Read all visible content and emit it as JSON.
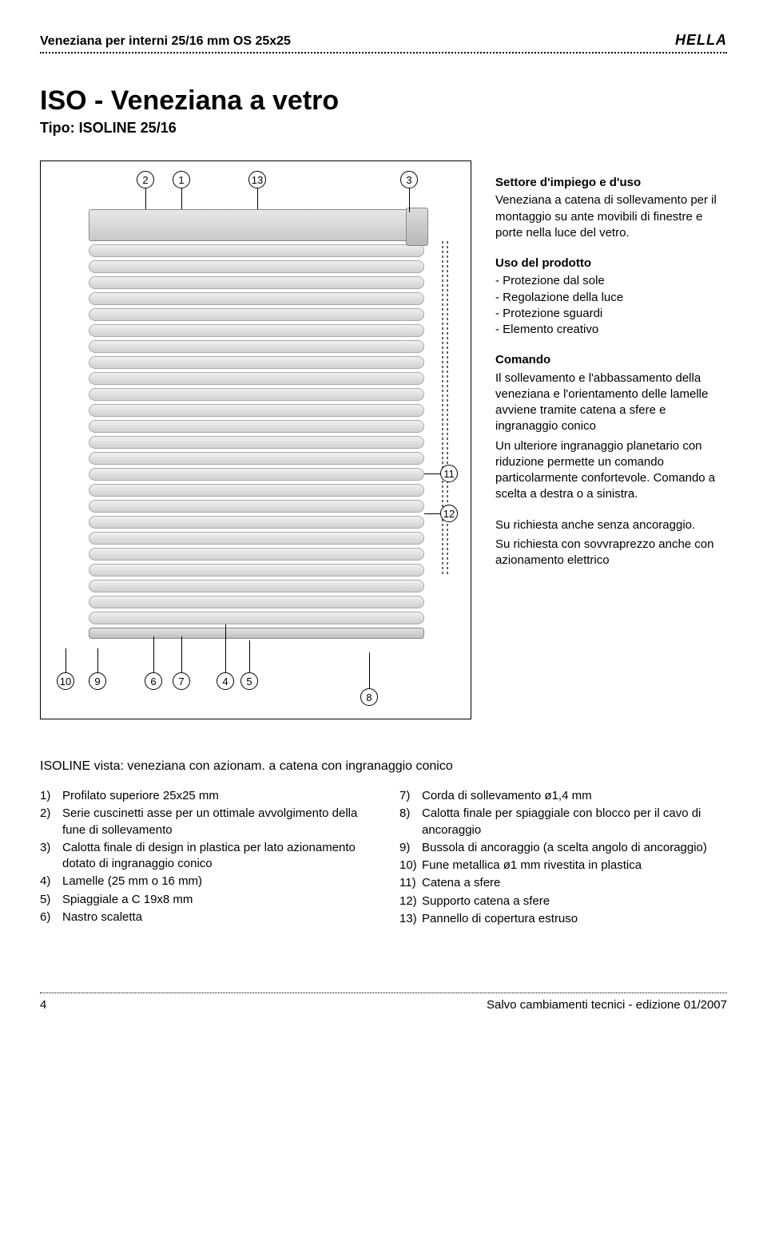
{
  "header": {
    "title": "Veneziana per interni 25/16 mm OS 25x25",
    "brand": "HELLA"
  },
  "title": "ISO - Veneziana a vetro",
  "subtitle": "Tipo: ISOLINE 25/16",
  "sections": {
    "settore_title": "Settore d'impiego e d'uso",
    "settore_body": "Veneziana a catena di sollevamento per il montaggio su ante movibili di finestre e porte nella luce del vetro.",
    "uso_title": "Uso del prodotto",
    "uso_items": [
      "Protezione dal sole",
      "Regolazione della luce",
      "Protezione sguardi",
      "Elemento creativo"
    ],
    "comando_title": "Comando",
    "comando_body1": "Il sollevamento e l'abbassamento della veneziana e l'orientamento delle lamelle avviene tramite catena a sfere e ingranaggio conico",
    "comando_body2": "Un ulteriore ingranaggio planetario con riduzione permette un comando particolarmente confortevole. Comando a scelta a destra o a sinistra.",
    "extra1": "Su richiesta anche senza ancoraggio.",
    "extra2": "Su richiesta con sovvraprezzo anche con azionamento elettrico"
  },
  "diagram": {
    "callouts_top": [
      "2",
      "1",
      "13",
      "3"
    ],
    "callouts_right": [
      "11",
      "12"
    ],
    "callouts_bottom_left": [
      "10",
      "9",
      "6",
      "7",
      "4",
      "5"
    ],
    "callout_bottom_center": "8",
    "slat_count": 24,
    "colors": {
      "frame": "#000000",
      "slat_light": "#f0f0f0",
      "slat_dark": "#d0d0d0"
    }
  },
  "caption": "ISOLINE vista: veneziana con azionam. a catena con ingranaggio conico",
  "parts_left": [
    {
      "n": "1)",
      "t": "Profilato superiore 25x25 mm"
    },
    {
      "n": "2)",
      "t": "Serie cuscinetti asse per un ottimale avvolgimento della fune di sollevamento"
    },
    {
      "n": "3)",
      "t": "Calotta finale di design in plastica per lato azionamento dotato di ingranaggio conico"
    },
    {
      "n": "4)",
      "t": "Lamelle (25 mm  o 16 mm)"
    },
    {
      "n": "5)",
      "t": "Spiaggiale a C 19x8 mm"
    },
    {
      "n": "6)",
      "t": "Nastro scaletta"
    }
  ],
  "parts_right": [
    {
      "n": "7)",
      "t": "Corda di sollevamento ø1,4 mm"
    },
    {
      "n": "8)",
      "t": "Calotta finale per spiaggiale con blocco per il cavo di ancoraggio"
    },
    {
      "n": "9)",
      "t": "Bussola di ancoraggio (a scelta angolo di ancoraggio)"
    },
    {
      "n": "10)",
      "t": "Fune metallica ø1 mm rivestita in plastica"
    },
    {
      "n": "11)",
      "t": "Catena a sfere"
    },
    {
      "n": "12)",
      "t": "Supporto catena a sfere"
    },
    {
      "n": "13)",
      "t": "Pannello di copertura estruso"
    }
  ],
  "footer": {
    "page": "4",
    "note": "Salvo cambiamenti tecnici - edizione 01/2007"
  }
}
